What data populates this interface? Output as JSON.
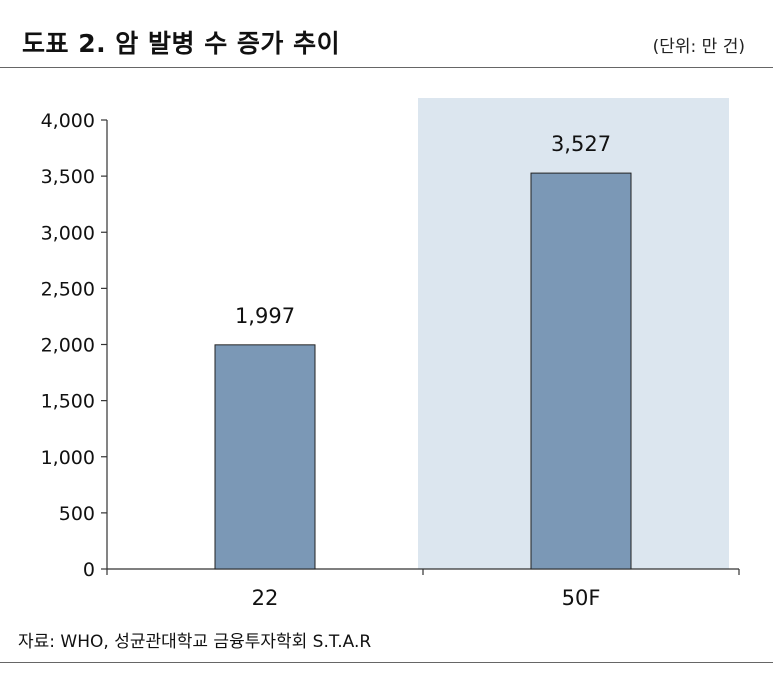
{
  "header": {
    "title": "도표 2. 암 발병 수 증가 추이",
    "unit": "(단위: 만 건)"
  },
  "footer": {
    "source": "자료: WHO, 성균관대학교 금융투자학회 S.T.A.R"
  },
  "colors": {
    "bar": "#7b98b6",
    "bar_stroke": "#222222",
    "highlight": "#dce6ef",
    "axis": "#333333"
  },
  "chart_data": {
    "type": "bar",
    "categories": [
      "22",
      "50F"
    ],
    "values": [
      1997,
      3527
    ],
    "data_labels": [
      "1,997",
      "3,527"
    ],
    "highlighted_category": "50F",
    "ylim": [
      0,
      4000
    ],
    "yticks": [
      0,
      500,
      1000,
      1500,
      2000,
      2500,
      3000,
      3500,
      4000
    ],
    "ytick_labels": [
      "0",
      "500",
      "1,000",
      "1,500",
      "2,000",
      "2,500",
      "3,000",
      "3,500",
      "4,000"
    ],
    "grid": false,
    "legend": "none"
  }
}
